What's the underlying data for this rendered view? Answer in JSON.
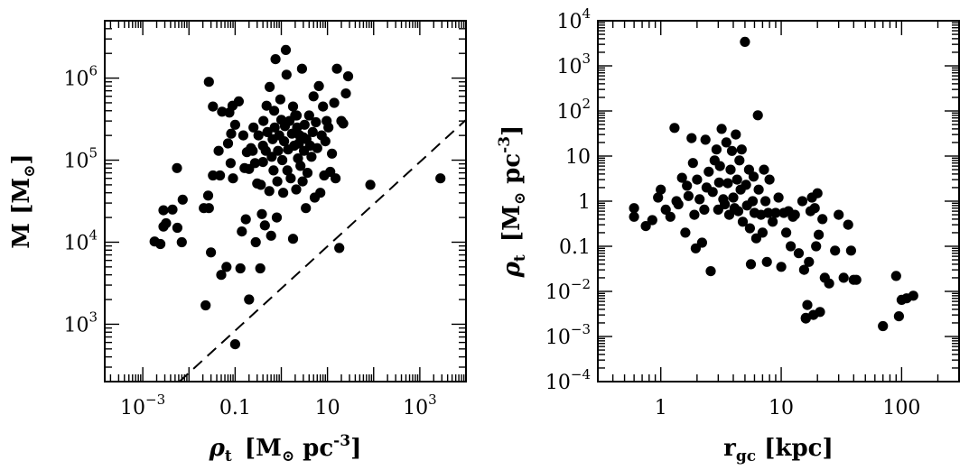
{
  "chart_data": [
    {
      "type": "scatter",
      "xscale": "log",
      "yscale": "log",
      "xlim": [
        0.00015,
        10000
      ],
      "ylim": [
        200,
        5000000
      ],
      "x_tick_labels": [
        "10^-3",
        "0.1",
        "10",
        "10^3"
      ],
      "y_tick_labels": [
        "10^3",
        "10^4",
        "10^5",
        "10^6"
      ],
      "xlabel": {
        "main": "ρ",
        "sub": "t",
        "bracket": "[M",
        "sun": "⊙",
        "unit": " pc",
        "exp": "-3",
        "close": "]"
      },
      "ylabel": {
        "main": "M  [M",
        "sun": "⊙",
        "close": "]"
      },
      "reference_line": {
        "style": "dashed",
        "x": [
          0.0062,
          10000
        ],
        "y": [
          200,
          310000
        ]
      },
      "points": [
        [
          0.0018,
          10200
        ],
        [
          0.0024,
          9500
        ],
        [
          0.0028,
          15500
        ],
        [
          0.0032,
          17000
        ],
        [
          0.0028,
          24500
        ],
        [
          0.0044,
          25000
        ],
        [
          0.0055,
          80000
        ],
        [
          0.0056,
          15000
        ],
        [
          0.0073,
          33000
        ],
        [
          0.007,
          10000
        ],
        [
          0.023,
          1700
        ],
        [
          0.021,
          26000
        ],
        [
          0.027,
          26000
        ],
        [
          0.026,
          37000
        ],
        [
          0.033,
          65000
        ],
        [
          0.03,
          7500
        ],
        [
          0.033,
          450000
        ],
        [
          0.027,
          900000
        ],
        [
          0.047,
          65000
        ],
        [
          0.044,
          130000
        ],
        [
          0.052,
          390000
        ],
        [
          0.05,
          4000
        ],
        [
          0.065,
          5000
        ],
        [
          0.07,
          160000
        ],
        [
          0.075,
          380000
        ],
        [
          0.08,
          92000
        ],
        [
          0.082,
          210000
        ],
        [
          0.088,
          460000
        ],
        [
          0.09,
          60000
        ],
        [
          0.1,
          270000
        ],
        [
          0.1,
          570
        ],
        [
          0.12,
          520000
        ],
        [
          0.13,
          4800
        ],
        [
          0.14,
          13500
        ],
        [
          0.16,
          80000
        ],
        [
          0.17,
          19000
        ],
        [
          0.18,
          125000
        ],
        [
          0.2,
          2000
        ],
        [
          0.2,
          78000
        ],
        [
          0.22,
          140000
        ],
        [
          0.24,
          130000
        ],
        [
          0.25,
          250000
        ],
        [
          0.27,
          92000
        ],
        [
          0.28,
          10000
        ],
        [
          0.3,
          52000
        ],
        [
          0.32,
          200000
        ],
        [
          0.35,
          4800
        ],
        [
          0.36,
          50000
        ],
        [
          0.38,
          22000
        ],
        [
          0.4,
          95000
        ],
        [
          0.41,
          300000
        ],
        [
          0.44,
          16000
        ],
        [
          0.46,
          130000
        ],
        [
          0.48,
          460000
        ],
        [
          0.5,
          220000
        ],
        [
          0.55,
          42000
        ],
        [
          0.56,
          780000
        ],
        [
          0.6,
          12000
        ],
        [
          0.62,
          110000
        ],
        [
          0.65,
          180000
        ],
        [
          0.68,
          75000
        ],
        [
          0.72,
          250000
        ],
        [
          0.75,
          1700000
        ],
        [
          0.8,
          20000
        ],
        [
          0.82,
          55000
        ],
        [
          0.85,
          130000
        ],
        [
          0.9,
          200000
        ],
        [
          0.95,
          550000
        ],
        [
          1.0,
          310000
        ],
        [
          1.05,
          100000
        ],
        [
          1.1,
          40000
        ],
        [
          1.15,
          170000
        ],
        [
          1.2,
          260000
        ],
        [
          1.3,
          1100000
        ],
        [
          1.35,
          75000
        ],
        [
          1.4,
          135000
        ],
        [
          1.5,
          300000
        ],
        [
          1.6,
          60000
        ],
        [
          1.7,
          210000
        ],
        [
          1.8,
          11000
        ],
        [
          1.9,
          150000
        ],
        [
          2.0,
          350000
        ],
        [
          2.1,
          44000
        ],
        [
          2.2,
          250000
        ],
        [
          2.3,
          105000
        ],
        [
          2.4,
          160000
        ],
        [
          2.5,
          200000
        ],
        [
          2.6,
          85000
        ],
        [
          2.8,
          1300000
        ],
        [
          2.9,
          55000
        ],
        [
          3.1,
          130000
        ],
        [
          3.2,
          270000
        ],
        [
          3.4,
          26000
        ],
        [
          3.5,
          180000
        ],
        [
          3.7,
          70000
        ],
        [
          4.0,
          350000
        ],
        [
          4.2,
          150000
        ],
        [
          4.5,
          110000
        ],
        [
          4.8,
          220000
        ],
        [
          5.0,
          600000
        ],
        [
          5.3,
          35000
        ],
        [
          5.6,
          290000
        ],
        [
          6.0,
          140000
        ],
        [
          6.5,
          800000
        ],
        [
          7.0,
          40000
        ],
        [
          7.5,
          200000
        ],
        [
          8.0,
          450000
        ],
        [
          8.5,
          65000
        ],
        [
          9.0,
          170000
        ],
        [
          9.6,
          300000
        ],
        [
          10.5,
          250000
        ],
        [
          11.5,
          72000
        ],
        [
          12.5,
          120000
        ],
        [
          14,
          500000
        ],
        [
          15,
          60000
        ],
        [
          16,
          1300000
        ],
        [
          18,
          8500
        ],
        [
          20,
          300000
        ],
        [
          22,
          280000
        ],
        [
          25,
          650000
        ],
        [
          28,
          1050000
        ],
        [
          85,
          50000
        ],
        [
          2800,
          60000
        ],
        [
          2.15,
          350000
        ],
        [
          1.25,
          2200000
        ],
        [
          0.15,
          200000
        ],
        [
          0.4,
          150000
        ],
        [
          0.7,
          400000
        ],
        [
          1.8,
          450000
        ],
        [
          3.0,
          190000
        ]
      ]
    },
    {
      "type": "scatter",
      "xscale": "log",
      "yscale": "log",
      "xlim": [
        0.3,
        300
      ],
      "ylim": [
        0.0001,
        10000
      ],
      "x_tick_labels": [
        "1",
        "10",
        "100"
      ],
      "y_tick_labels": [
        "10^-4",
        "10^-3",
        "10^-2",
        "0.1",
        "1",
        "10",
        "10^2",
        "10^3",
        "10^4"
      ],
      "xlabel": {
        "main": "r",
        "sub": "gc",
        "unit": "  [kpc]"
      },
      "ylabel": {
        "main": "ρ",
        "sub": "t",
        "bracket": "[M",
        "sun": "⊙",
        "unit": " pc",
        "exp": "-3",
        "close": "]"
      },
      "points": [
        [
          0.6,
          0.7
        ],
        [
          0.6,
          0.45
        ],
        [
          0.75,
          0.28
        ],
        [
          0.85,
          0.38
        ],
        [
          0.95,
          1.2
        ],
        [
          1.0,
          1.8
        ],
        [
          1.1,
          0.65
        ],
        [
          1.2,
          0.45
        ],
        [
          1.3,
          42
        ],
        [
          1.35,
          1.0
        ],
        [
          1.4,
          0.85
        ],
        [
          1.5,
          3.3
        ],
        [
          1.6,
          0.2
        ],
        [
          1.65,
          2.2
        ],
        [
          1.7,
          1.3
        ],
        [
          1.8,
          25
        ],
        [
          1.85,
          7
        ],
        [
          1.9,
          0.5
        ],
        [
          1.95,
          0.09
        ],
        [
          2.0,
          3.0
        ],
        [
          2.1,
          1.1
        ],
        [
          2.2,
          0.12
        ],
        [
          2.3,
          0.65
        ],
        [
          2.35,
          23
        ],
        [
          2.4,
          2.0
        ],
        [
          2.5,
          4.5
        ],
        [
          2.6,
          0.028
        ],
        [
          2.7,
          1.6
        ],
        [
          2.8,
          8
        ],
        [
          2.9,
          14
        ],
        [
          3.0,
          0.65
        ],
        [
          3.05,
          2.6
        ],
        [
          3.1,
          6
        ],
        [
          3.2,
          40
        ],
        [
          3.3,
          1.1
        ],
        [
          3.4,
          0.85
        ],
        [
          3.5,
          20
        ],
        [
          3.6,
          2.5
        ],
        [
          3.7,
          0.5
        ],
        [
          3.8,
          5
        ],
        [
          3.9,
          13
        ],
        [
          4.0,
          1.2
        ],
        [
          4.1,
          0.7
        ],
        [
          4.2,
          30
        ],
        [
          4.3,
          3.0
        ],
        [
          4.4,
          0.6
        ],
        [
          4.5,
          8
        ],
        [
          4.6,
          1.8
        ],
        [
          4.7,
          14
        ],
        [
          4.8,
          0.35
        ],
        [
          5.0,
          3400
        ],
        [
          5.1,
          2.3
        ],
        [
          5.2,
          0.8
        ],
        [
          5.4,
          5
        ],
        [
          5.5,
          0.25
        ],
        [
          5.6,
          0.04
        ],
        [
          5.8,
          1.0
        ],
        [
          5.9,
          3.5
        ],
        [
          6.0,
          0.55
        ],
        [
          6.2,
          0.15
        ],
        [
          6.4,
          80
        ],
        [
          6.5,
          1.8
        ],
        [
          6.8,
          0.5
        ],
        [
          7.0,
          0.2
        ],
        [
          7.2,
          5
        ],
        [
          7.4,
          1.0
        ],
        [
          7.6,
          0.045
        ],
        [
          7.8,
          0.55
        ],
        [
          8.0,
          3.0
        ],
        [
          8.5,
          0.35
        ],
        [
          9.0,
          0.55
        ],
        [
          9.5,
          1.2
        ],
        [
          10.0,
          0.035
        ],
        [
          10.5,
          0.55
        ],
        [
          11,
          0.2
        ],
        [
          11.5,
          0.6
        ],
        [
          12,
          0.1
        ],
        [
          12.5,
          0.45
        ],
        [
          13,
          0.5
        ],
        [
          14,
          0.07
        ],
        [
          15,
          1.0
        ],
        [
          15.5,
          0.03
        ],
        [
          16,
          0.0025
        ],
        [
          16.5,
          0.005
        ],
        [
          17,
          0.045
        ],
        [
          17.5,
          0.6
        ],
        [
          18,
          1.2
        ],
        [
          18.5,
          0.003
        ],
        [
          19,
          0.7
        ],
        [
          19.5,
          0.1
        ],
        [
          20,
          1.5
        ],
        [
          20.5,
          0.18
        ],
        [
          21,
          0.0035
        ],
        [
          22,
          0.4
        ],
        [
          23,
          0.02
        ],
        [
          25,
          0.015
        ],
        [
          28,
          0.08
        ],
        [
          30,
          0.5
        ],
        [
          33,
          0.02
        ],
        [
          36,
          0.3
        ],
        [
          38,
          0.08
        ],
        [
          40,
          0.018
        ],
        [
          42,
          0.018
        ],
        [
          70,
          0.0017
        ],
        [
          90,
          0.022
        ],
        [
          95,
          0.0028
        ],
        [
          100,
          0.0065
        ],
        [
          110,
          0.007
        ],
        [
          125,
          0.008
        ],
        [
          16,
          0.0026
        ]
      ]
    }
  ]
}
